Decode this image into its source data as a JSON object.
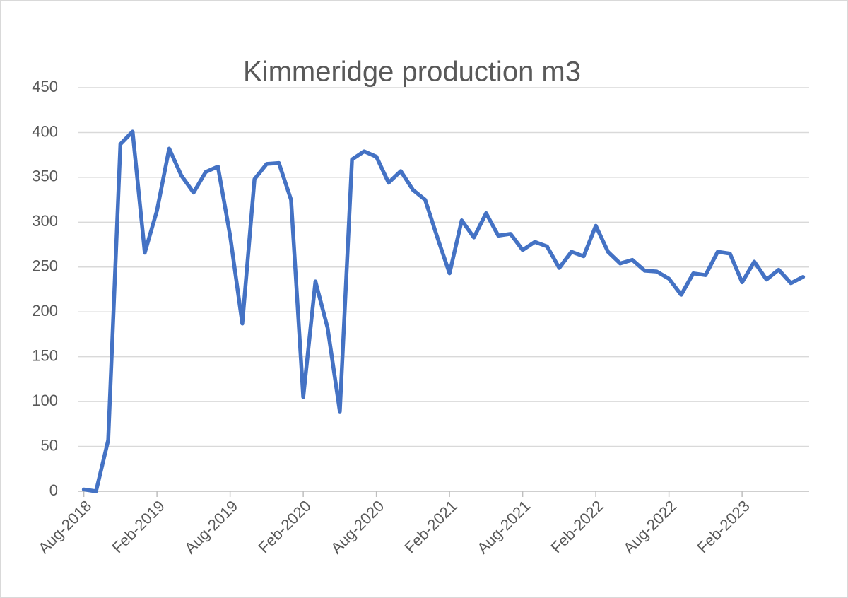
{
  "chart_data": {
    "type": "line",
    "title": "Kimmeridge production m3",
    "categories": [
      "Aug-2018",
      null,
      null,
      null,
      null,
      null,
      "Feb-2019",
      null,
      null,
      null,
      null,
      null,
      "Aug-2019",
      null,
      null,
      null,
      null,
      null,
      "Feb-2020",
      null,
      null,
      null,
      null,
      null,
      "Aug-2020",
      null,
      null,
      null,
      null,
      null,
      "Feb-2021",
      null,
      null,
      null,
      null,
      null,
      "Aug-2021",
      null,
      null,
      null,
      null,
      null,
      "Feb-2022",
      null,
      null,
      null,
      null,
      null,
      "Aug-2022",
      null,
      null,
      null,
      null,
      null,
      "Feb-2023",
      null,
      null,
      null,
      null,
      null
    ],
    "series": [
      {
        "name": "Kimmeridge production m3",
        "color": "#4472c4",
        "values": [
          2,
          0,
          57,
          387,
          401,
          266,
          313,
          382,
          352,
          333,
          356,
          362,
          285,
          187,
          348,
          365,
          366,
          325,
          105,
          234,
          182,
          89,
          370,
          379,
          373,
          344,
          357,
          336,
          325,
          283,
          243,
          302,
          283,
          310,
          285,
          287,
          269,
          278,
          273,
          249,
          267,
          262,
          296,
          267,
          254,
          258,
          246,
          245,
          237,
          219,
          243,
          241,
          267,
          265,
          233,
          256,
          236,
          247,
          232,
          239
        ]
      }
    ],
    "ylim": [
      0,
      450
    ],
    "yticks": [
      0,
      50,
      100,
      150,
      200,
      250,
      300,
      350,
      400,
      450
    ],
    "grid": true
  }
}
